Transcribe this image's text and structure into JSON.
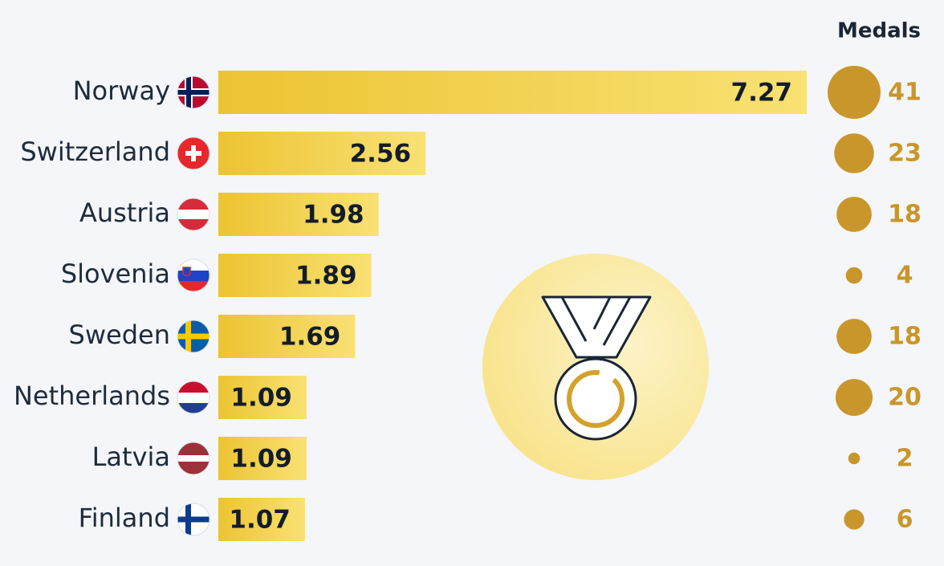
{
  "chart_data": {
    "type": "bar",
    "categories": [
      "Norway",
      "Switzerland",
      "Austria",
      "Slovenia",
      "Sweden",
      "Netherlands",
      "Latvia",
      "Finland"
    ],
    "values": [
      7.27,
      2.56,
      1.98,
      1.89,
      1.69,
      1.09,
      1.09,
      1.07
    ],
    "color": "#f2cc3a",
    "bubbles": {
      "name": "Medals",
      "values": [
        41,
        23,
        18,
        4,
        18,
        20,
        2,
        6
      ],
      "color": "#c9962b"
    }
  }
}
